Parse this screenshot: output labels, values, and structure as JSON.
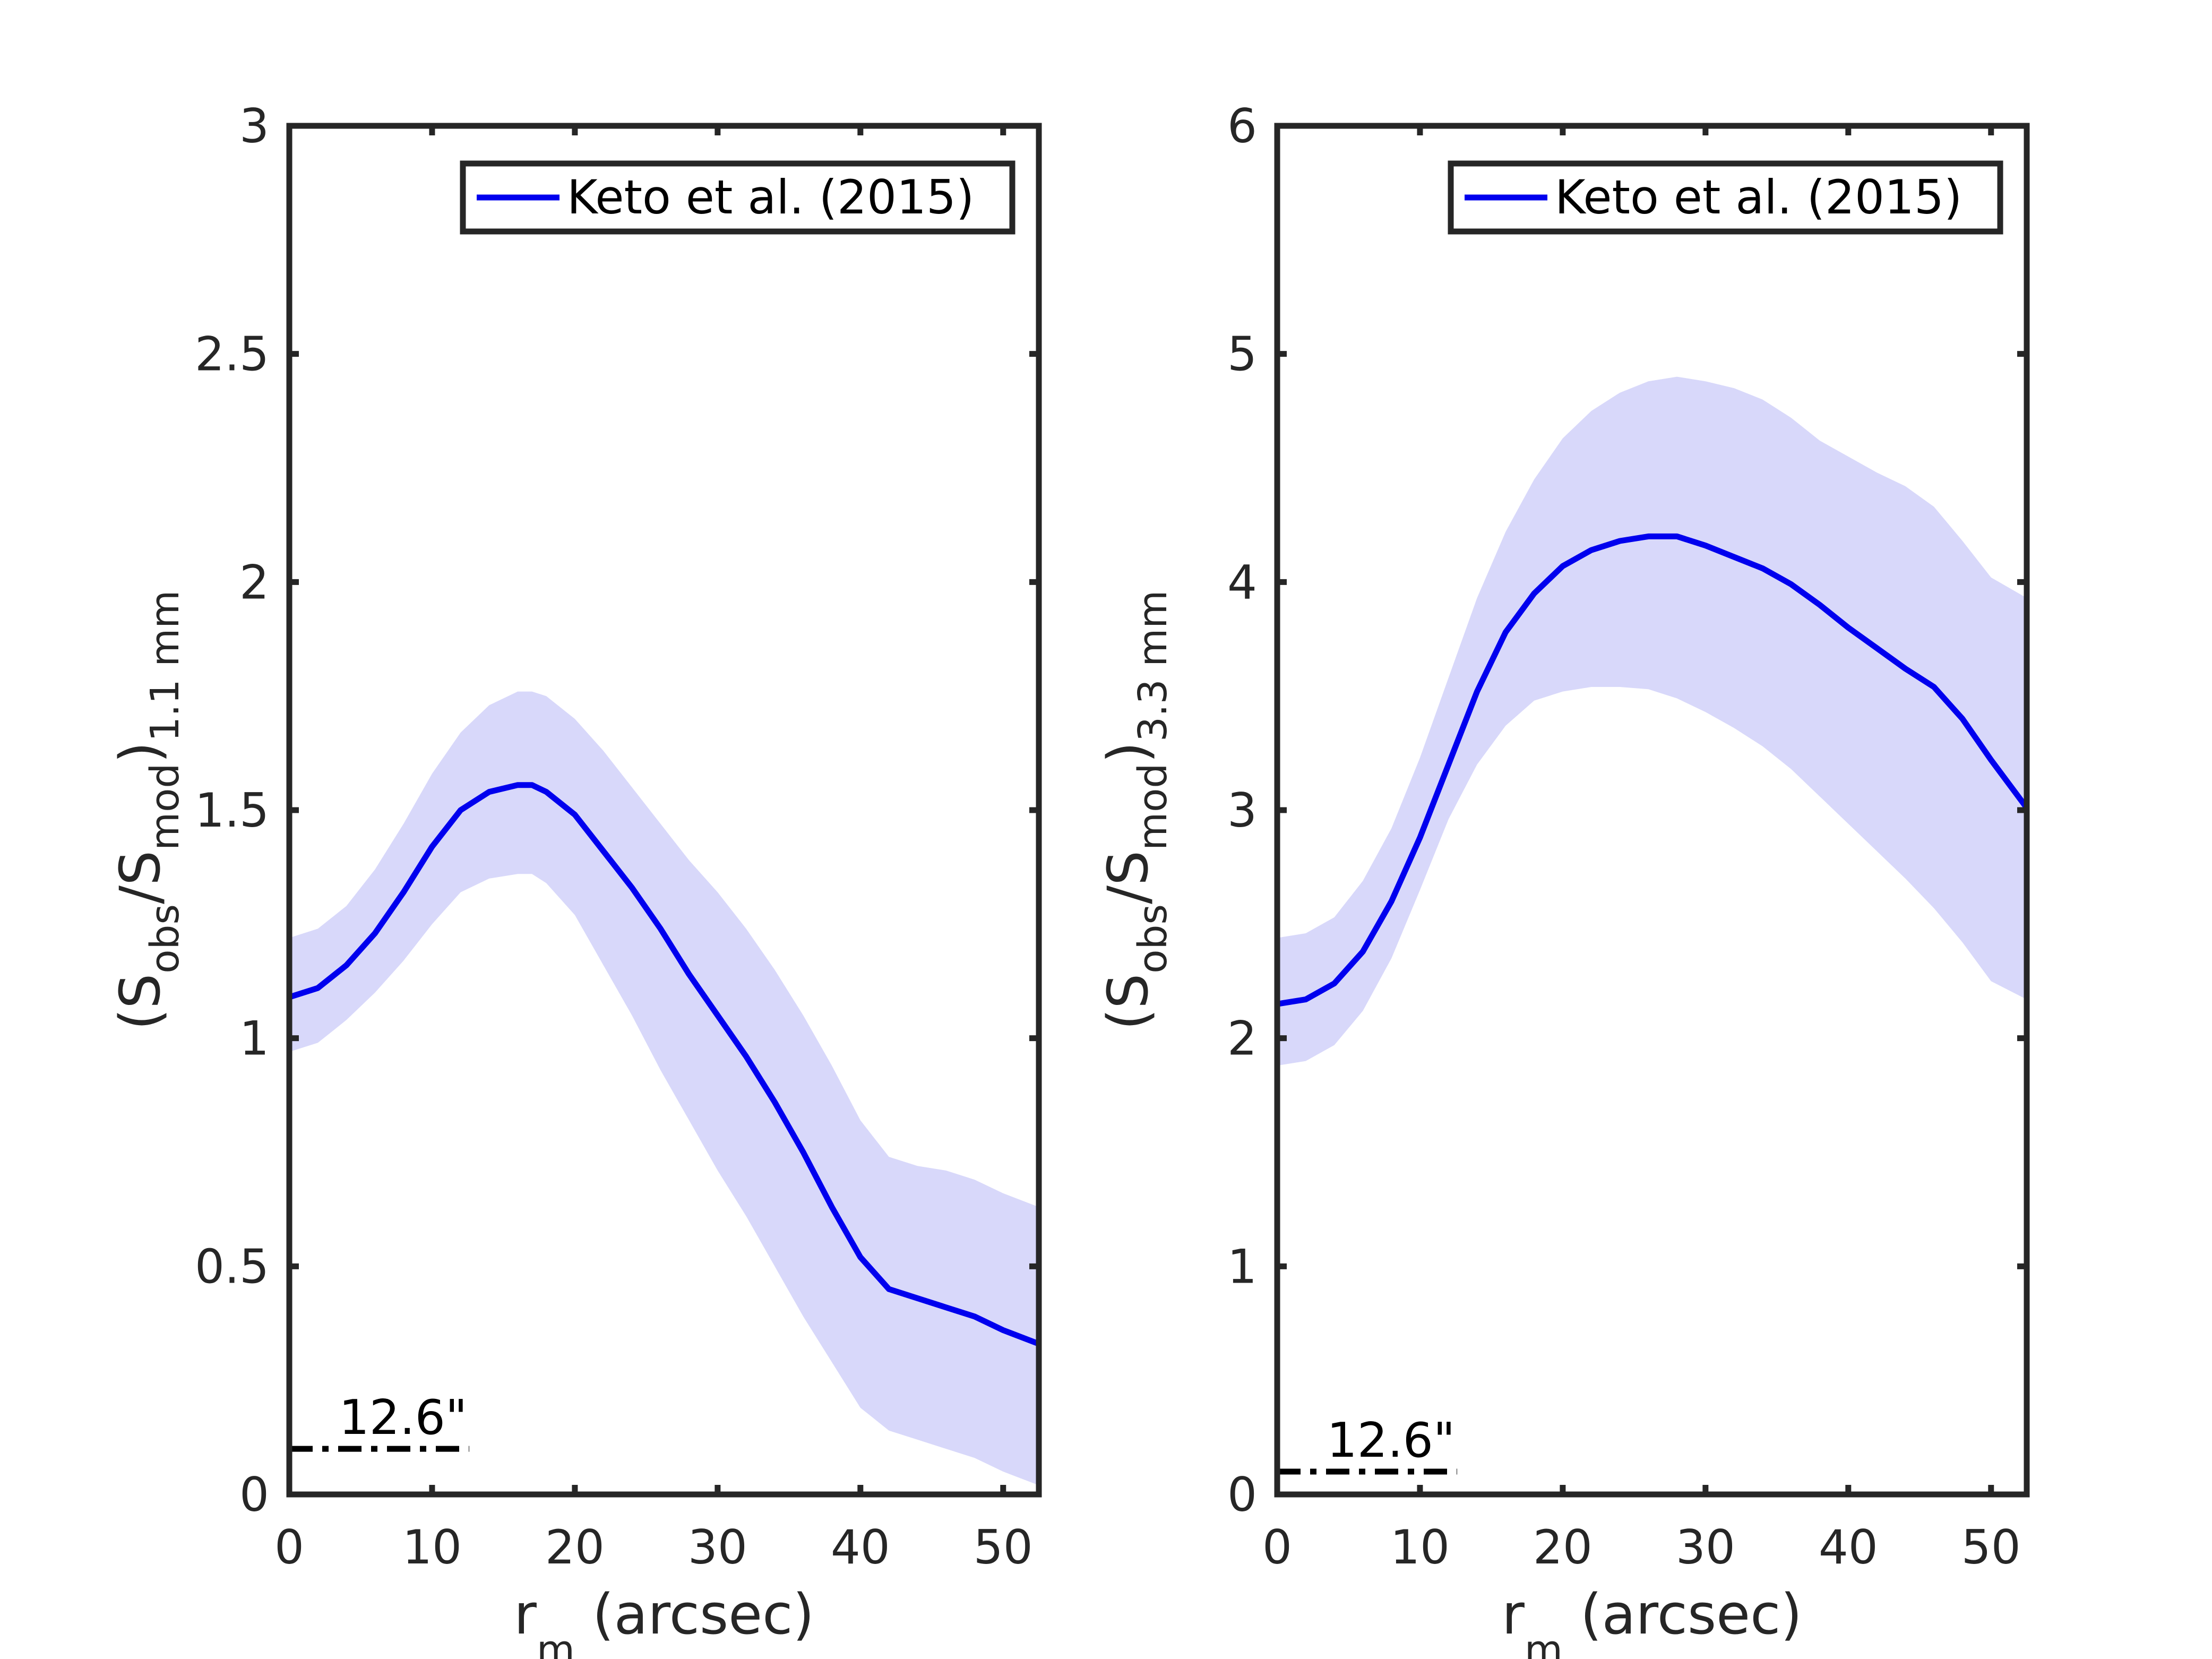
{
  "chart_data": [
    {
      "type": "line",
      "panel": "left",
      "xlabel": {
        "main": "r",
        "sub": "m",
        "tail": " (arcsec)"
      },
      "ylabel": {
        "pre": "(S",
        "sub1": "obs",
        "mid": "/S",
        "sub2": "mod",
        "post": ")",
        "sub3": "1.1 mm"
      },
      "xlim": [
        0,
        52.5
      ],
      "ylim": [
        0,
        3
      ],
      "xticks": [
        0,
        10,
        20,
        30,
        40,
        50
      ],
      "xtick_labels": [
        "0",
        "10",
        "20",
        "30",
        "40",
        "50"
      ],
      "yticks": [
        0,
        0.5,
        1,
        1.5,
        2,
        2.5,
        3
      ],
      "ytick_labels": [
        "0",
        "0.5",
        "1",
        "1.5",
        "2",
        "2.5",
        "3"
      ],
      "legend": {
        "label": "Keto et al. (2015)",
        "location": "top-right"
      },
      "colors": {
        "line": "#0000ee",
        "band": "#d8d8fa",
        "axes": "#262626"
      },
      "series": [
        {
          "name": "Keto et al. (2015)",
          "x": [
            0,
            2,
            4,
            6,
            8,
            10,
            12,
            14,
            16,
            17,
            18,
            20,
            22,
            24,
            26,
            28,
            30,
            32,
            34,
            36,
            38,
            40,
            42,
            44,
            46,
            48,
            50,
            52.5
          ],
          "y": [
            1.09,
            1.11,
            1.16,
            1.23,
            1.32,
            1.42,
            1.5,
            1.54,
            1.555,
            1.555,
            1.54,
            1.49,
            1.41,
            1.33,
            1.24,
            1.14,
            1.05,
            0.96,
            0.86,
            0.75,
            0.63,
            0.52,
            0.45,
            0.43,
            0.41,
            0.39,
            0.36,
            0.33
          ],
          "lower": [
            0.97,
            0.99,
            1.04,
            1.1,
            1.17,
            1.25,
            1.32,
            1.35,
            1.36,
            1.36,
            1.34,
            1.27,
            1.16,
            1.05,
            0.93,
            0.82,
            0.71,
            0.61,
            0.5,
            0.39,
            0.29,
            0.19,
            0.14,
            0.12,
            0.1,
            0.08,
            0.05,
            0.02
          ],
          "upper": [
            1.22,
            1.24,
            1.29,
            1.37,
            1.47,
            1.58,
            1.67,
            1.73,
            1.76,
            1.76,
            1.75,
            1.7,
            1.63,
            1.55,
            1.47,
            1.39,
            1.32,
            1.24,
            1.15,
            1.05,
            0.94,
            0.82,
            0.74,
            0.72,
            0.71,
            0.69,
            0.66,
            0.63
          ]
        }
      ],
      "beam": {
        "label": "12.6\"",
        "x_start": 0,
        "x_end": 12.6,
        "y": 0.1
      }
    },
    {
      "type": "line",
      "panel": "right",
      "xlabel": {
        "main": "r",
        "sub": "m",
        "tail": " (arcsec)"
      },
      "ylabel": {
        "pre": "(S",
        "sub1": "obs",
        "mid": "/S",
        "sub2": "mod",
        "post": ")",
        "sub3": "3.3 mm"
      },
      "xlim": [
        0,
        52.5
      ],
      "ylim": [
        0,
        6
      ],
      "xticks": [
        0,
        10,
        20,
        30,
        40,
        50
      ],
      "xtick_labels": [
        "0",
        "10",
        "20",
        "30",
        "40",
        "50"
      ],
      "yticks": [
        0,
        1,
        2,
        3,
        4,
        5,
        6
      ],
      "ytick_labels": [
        "0",
        "1",
        "2",
        "3",
        "4",
        "5",
        "6"
      ],
      "legend": {
        "label": "Keto et al. (2015)",
        "location": "top-right"
      },
      "colors": {
        "line": "#0000ee",
        "band": "#d8d8fa",
        "axes": "#262626"
      },
      "series": [
        {
          "name": "Keto et al. (2015)",
          "x": [
            0,
            2,
            4,
            6,
            8,
            10,
            12,
            14,
            16,
            18,
            20,
            22,
            24,
            26,
            28,
            30,
            32,
            34,
            36,
            38,
            40,
            42,
            44,
            46,
            48,
            50,
            52.5
          ],
          "y": [
            2.15,
            2.17,
            2.24,
            2.38,
            2.6,
            2.88,
            3.2,
            3.52,
            3.78,
            3.95,
            4.07,
            4.14,
            4.18,
            4.2,
            4.2,
            4.16,
            4.11,
            4.06,
            3.99,
            3.9,
            3.8,
            3.71,
            3.62,
            3.54,
            3.4,
            3.22,
            3.01
          ],
          "lower": [
            1.88,
            1.9,
            1.97,
            2.12,
            2.35,
            2.65,
            2.96,
            3.2,
            3.37,
            3.48,
            3.52,
            3.54,
            3.54,
            3.53,
            3.49,
            3.43,
            3.36,
            3.28,
            3.18,
            3.06,
            2.94,
            2.82,
            2.7,
            2.57,
            2.42,
            2.25,
            2.17
          ],
          "upper": [
            2.44,
            2.46,
            2.53,
            2.69,
            2.92,
            3.23,
            3.58,
            3.93,
            4.22,
            4.45,
            4.63,
            4.75,
            4.83,
            4.88,
            4.9,
            4.88,
            4.85,
            4.8,
            4.72,
            4.62,
            4.55,
            4.48,
            4.42,
            4.33,
            4.18,
            4.02,
            3.93
          ]
        }
      ],
      "beam": {
        "label": "12.6\"",
        "x_start": 0,
        "x_end": 12.6,
        "y": 0.1
      }
    }
  ]
}
